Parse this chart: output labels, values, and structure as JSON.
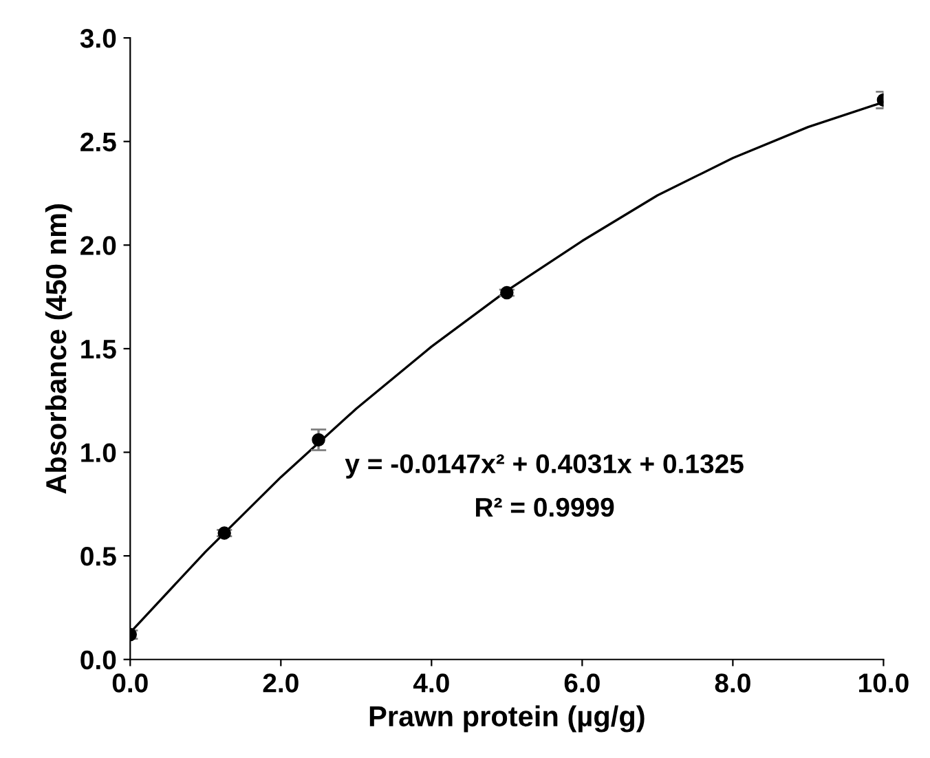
{
  "chart_data": {
    "type": "scatter",
    "xlabel": "Prawn protein (µg/g)",
    "ylabel": "Absorbance (450 nm)",
    "x": [
      0,
      1.25,
      2.5,
      5,
      10
    ],
    "series": [
      {
        "color": "#000000",
        "marker": "circle",
        "values": [
          0.12,
          0.61,
          1.06,
          1.77,
          2.7
        ],
        "errors": [
          0.02,
          0.015,
          0.05,
          0.015,
          0.04
        ]
      },
      {
        "type": "line",
        "color": "#000000",
        "line_style": "solid",
        "marker": "none",
        "x": [
          0,
          1,
          2,
          3,
          4,
          5,
          6,
          7,
          8,
          9,
          10
        ],
        "values": [
          0.13,
          0.52,
          0.88,
          1.21,
          1.51,
          1.78,
          2.02,
          2.24,
          2.42,
          2.57,
          2.69
        ]
      }
    ],
    "xlim": [
      0,
      10
    ],
    "ylim": [
      0,
      3
    ],
    "xticks": [
      {
        "value": 0,
        "label": "0.0"
      },
      {
        "value": 2,
        "label": "2.0"
      },
      {
        "value": 4,
        "label": "4.0"
      },
      {
        "value": 6,
        "label": "6.0"
      },
      {
        "value": 8,
        "label": "8.0"
      },
      {
        "value": 10,
        "label": "10.0"
      }
    ],
    "yticks": [
      {
        "value": 0,
        "label": "0.0"
      },
      {
        "value": 0.5,
        "label": "0.5"
      },
      {
        "value": 1,
        "label": "1.0"
      },
      {
        "value": 1.5,
        "label": "1.5"
      },
      {
        "value": 2,
        "label": "2.0"
      },
      {
        "value": 2.5,
        "label": "2.5"
      },
      {
        "value": 3,
        "label": "3.0"
      }
    ],
    "grid": false,
    "legend": false,
    "annotations": [
      "y = -0.0147x² + 0.4031x + 0.1325",
      "R² = 0.9999"
    ]
  }
}
